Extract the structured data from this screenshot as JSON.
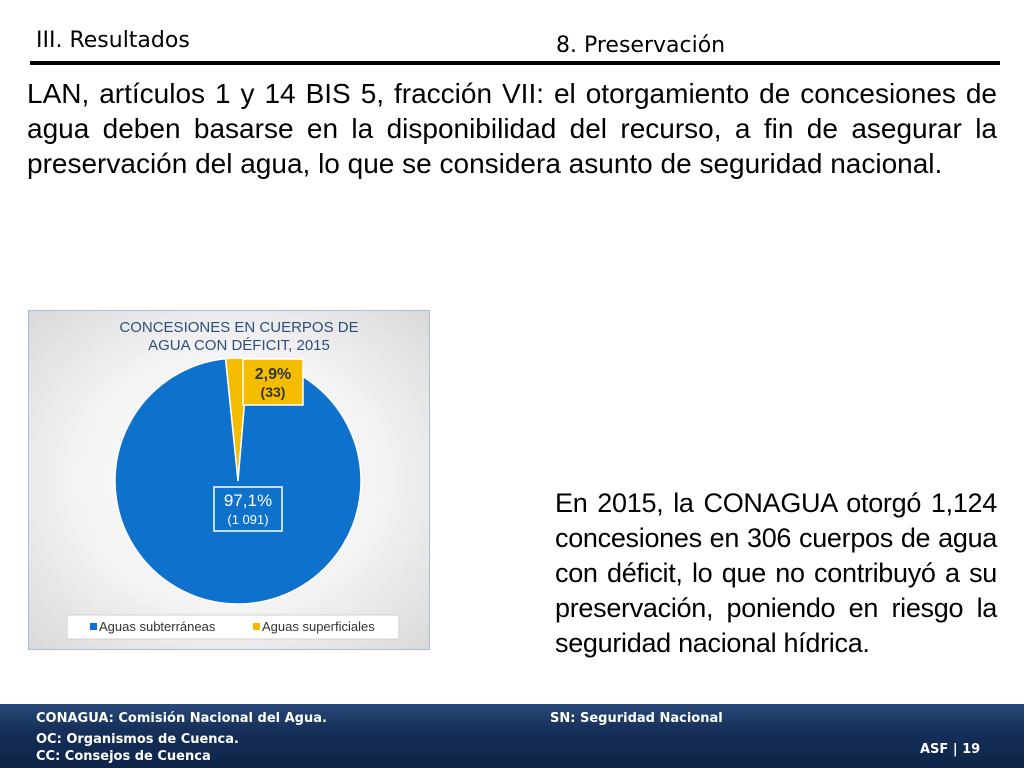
{
  "header": {
    "section": "III. Resultados",
    "topic": "8. Preservación"
  },
  "intro_text": "LAN, artículos 1 y 14 BIS 5, fracción VII: el otorgamiento de concesiones de agua deben basarse en la disponibilidad del recurso, a fin de asegurar la preservación del agua, lo que se considera asunto de seguridad nacional.",
  "finding_text": "En 2015, la CONAGUA otorgó 1,124 concesiones en 306 cuerpos de agua con déficit, lo que no contribuyó a su preservación, poniendo en riesgo la seguridad nacional hídrica.",
  "chart_data": {
    "type": "pie",
    "title_line1": "CONCESIONES EN CUERPOS DE",
    "title_line2": "AGUA CON DÉFICIT, 2015",
    "series": [
      {
        "name": "Aguas subterráneas",
        "value": 1091,
        "percent_label": "97,1%",
        "count_label": "(1 091)",
        "color": "#0e72cc"
      },
      {
        "name": "Aguas superficiales",
        "value": 33,
        "percent_label": "2,9%",
        "count_label": "(33)",
        "color": "#f5bd00"
      }
    ],
    "legend_position": "bottom"
  },
  "footer": {
    "conagua": "CONAGUA: Comisión Nacional del Agua.",
    "sn": "SN: Seguridad Nacional",
    "oc": "OC: Organismos de Cuenca.",
    "cc": "CC: Consejos de Cuenca",
    "page_label": "ASF | 19"
  }
}
